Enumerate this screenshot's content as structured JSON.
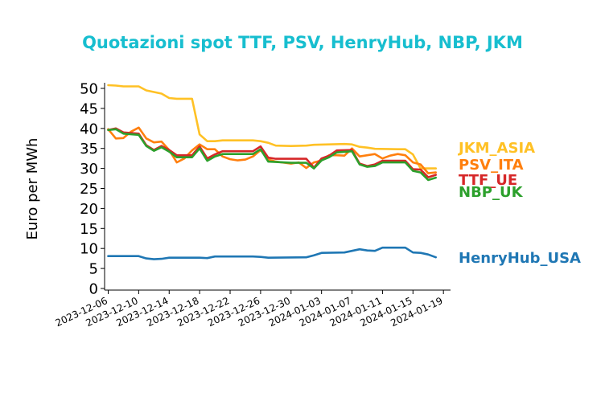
{
  "chart_data": {
    "type": "line",
    "title": "Quotazioni spot TTF, PSV, HenryHub, NBP, JKM",
    "title_color": "#17becf",
    "ylabel": "Euro per MWh",
    "xlabel": "",
    "ylim": [
      0,
      51
    ],
    "yticks": [
      0,
      5,
      10,
      15,
      20,
      25,
      30,
      35,
      40,
      45,
      50
    ],
    "xlim": [
      "2023-12-06",
      "2024-01-19"
    ],
    "xticks": [
      "2023-12-06",
      "2023-12-10",
      "2023-12-14",
      "2023-12-18",
      "2023-12-22",
      "2023-12-26",
      "2023-12-30",
      "2024-01-03",
      "2024-01-07",
      "2024-01-11",
      "2024-01-15",
      "2024-01-19"
    ],
    "grid": false,
    "legend": "labels at right end of lines",
    "series": [
      {
        "name": "JKM_ASIA",
        "color": "#ffc125",
        "points": [
          [
            "2023-12-06",
            50.8
          ],
          [
            "2023-12-07",
            50.7
          ],
          [
            "2023-12-08",
            50.5
          ],
          [
            "2023-12-10",
            50.5
          ],
          [
            "2023-12-11",
            49.5
          ],
          [
            "2023-12-12",
            49.1
          ],
          [
            "2023-12-13",
            48.7
          ],
          [
            "2023-12-14",
            47.6
          ],
          [
            "2023-12-15",
            47.4
          ],
          [
            "2023-12-16",
            47.4
          ],
          [
            "2023-12-17",
            47.4
          ],
          [
            "2023-12-18",
            38.5
          ],
          [
            "2023-12-19",
            36.8
          ],
          [
            "2023-12-20",
            36.8
          ],
          [
            "2023-12-21",
            37.0
          ],
          [
            "2023-12-25",
            37.0
          ],
          [
            "2023-12-26",
            36.8
          ],
          [
            "2023-12-27",
            36.4
          ],
          [
            "2023-12-28",
            35.7
          ],
          [
            "2023-12-30",
            35.6
          ],
          [
            "2024-01-01",
            35.7
          ],
          [
            "2024-01-02",
            35.9
          ],
          [
            "2024-01-04",
            36.0
          ],
          [
            "2024-01-06",
            36.1
          ],
          [
            "2024-01-07",
            36.0
          ],
          [
            "2024-01-08",
            35.4
          ],
          [
            "2024-01-09",
            35.2
          ],
          [
            "2024-01-10",
            34.9
          ],
          [
            "2024-01-13",
            34.8
          ],
          [
            "2024-01-14",
            34.8
          ],
          [
            "2024-01-15",
            33.5
          ],
          [
            "2024-01-16",
            30.0
          ],
          [
            "2024-01-17",
            30.0
          ],
          [
            "2024-01-18",
            30.0
          ]
        ]
      },
      {
        "name": "PSV_ITA",
        "color": "#ff7f0e",
        "points": [
          [
            "2023-12-06",
            39.8
          ],
          [
            "2023-12-07",
            37.5
          ],
          [
            "2023-12-08",
            37.6
          ],
          [
            "2023-12-09",
            39.2
          ],
          [
            "2023-12-10",
            40.2
          ],
          [
            "2023-12-11",
            37.5
          ],
          [
            "2023-12-12",
            36.5
          ],
          [
            "2023-12-13",
            36.7
          ],
          [
            "2023-12-14",
            34.6
          ],
          [
            "2023-12-15",
            31.5
          ],
          [
            "2023-12-16",
            32.5
          ],
          [
            "2023-12-17",
            34.5
          ],
          [
            "2023-12-18",
            36.0
          ],
          [
            "2023-12-19",
            34.8
          ],
          [
            "2023-12-20",
            34.8
          ],
          [
            "2023-12-21",
            33.0
          ],
          [
            "2023-12-22",
            32.3
          ],
          [
            "2023-12-23",
            32.0
          ],
          [
            "2023-12-24",
            32.2
          ],
          [
            "2023-12-25",
            33.0
          ],
          [
            "2023-12-26",
            34.6
          ],
          [
            "2023-12-27",
            32.2
          ],
          [
            "2023-12-28",
            31.7
          ],
          [
            "2023-12-30",
            31.2
          ],
          [
            "2023-12-31",
            31.5
          ],
          [
            "2024-01-01",
            30.1
          ],
          [
            "2024-01-02",
            31.5
          ],
          [
            "2024-01-03",
            32.0
          ],
          [
            "2024-01-04",
            33.3
          ],
          [
            "2024-01-05",
            33.3
          ],
          [
            "2024-01-06",
            33.2
          ],
          [
            "2024-01-07",
            35.0
          ],
          [
            "2024-01-08",
            33.0
          ],
          [
            "2024-01-09",
            33.3
          ],
          [
            "2024-01-10",
            33.6
          ],
          [
            "2024-01-11",
            32.5
          ],
          [
            "2024-01-12",
            33.2
          ],
          [
            "2024-01-13",
            33.6
          ],
          [
            "2024-01-14",
            33.3
          ],
          [
            "2024-01-15",
            31.5
          ],
          [
            "2024-01-16",
            31.0
          ],
          [
            "2024-01-17",
            28.8
          ],
          [
            "2024-01-18",
            29.0
          ]
        ]
      },
      {
        "name": "TTF_UE",
        "color": "#d62728",
        "points": [
          [
            "2023-12-06",
            39.6
          ],
          [
            "2023-12-07",
            40.0
          ],
          [
            "2023-12-08",
            39.0
          ],
          [
            "2023-12-10",
            38.7
          ],
          [
            "2023-12-11",
            35.8
          ],
          [
            "2023-12-12",
            34.6
          ],
          [
            "2023-12-13",
            35.6
          ],
          [
            "2023-12-14",
            34.6
          ],
          [
            "2023-12-15",
            33.3
          ],
          [
            "2023-12-17",
            33.3
          ],
          [
            "2023-12-18",
            35.5
          ],
          [
            "2023-12-19",
            32.5
          ],
          [
            "2023-12-20",
            33.5
          ],
          [
            "2023-12-21",
            34.3
          ],
          [
            "2023-12-25",
            34.3
          ],
          [
            "2023-12-26",
            35.5
          ],
          [
            "2023-12-27",
            32.7
          ],
          [
            "2023-12-28",
            32.4
          ],
          [
            "2024-01-01",
            32.4
          ],
          [
            "2024-01-02",
            30.2
          ],
          [
            "2024-01-03",
            32.5
          ],
          [
            "2024-01-04",
            33.2
          ],
          [
            "2024-01-05",
            34.5
          ],
          [
            "2024-01-07",
            34.6
          ],
          [
            "2024-01-08",
            31.2
          ],
          [
            "2024-01-09",
            30.6
          ],
          [
            "2024-01-10",
            31.0
          ],
          [
            "2024-01-11",
            31.9
          ],
          [
            "2024-01-13",
            31.9
          ],
          [
            "2024-01-14",
            31.9
          ],
          [
            "2024-01-15",
            29.8
          ],
          [
            "2024-01-16",
            29.7
          ],
          [
            "2024-01-17",
            27.8
          ],
          [
            "2024-01-18",
            28.4
          ]
        ]
      },
      {
        "name": "NBP_UK",
        "color": "#2ca02c",
        "points": [
          [
            "2023-12-06",
            39.6
          ],
          [
            "2023-12-07",
            39.8
          ],
          [
            "2023-12-08",
            38.7
          ],
          [
            "2023-12-10",
            38.4
          ],
          [
            "2023-12-11",
            35.6
          ],
          [
            "2023-12-12",
            34.4
          ],
          [
            "2023-12-13",
            35.3
          ],
          [
            "2023-12-14",
            34.2
          ],
          [
            "2023-12-15",
            32.8
          ],
          [
            "2023-12-17",
            32.8
          ],
          [
            "2023-12-18",
            35.0
          ],
          [
            "2023-12-19",
            31.9
          ],
          [
            "2023-12-20",
            33.0
          ],
          [
            "2023-12-21",
            33.6
          ],
          [
            "2023-12-25",
            33.6
          ],
          [
            "2023-12-26",
            34.8
          ],
          [
            "2023-12-27",
            31.7
          ],
          [
            "2023-12-28",
            31.6
          ],
          [
            "2023-12-30",
            31.4
          ],
          [
            "2024-01-01",
            31.4
          ],
          [
            "2024-01-02",
            30.0
          ],
          [
            "2024-01-03",
            32.0
          ],
          [
            "2024-01-04",
            32.8
          ],
          [
            "2024-01-05",
            34.0
          ],
          [
            "2024-01-07",
            34.3
          ],
          [
            "2024-01-08",
            31.0
          ],
          [
            "2024-01-09",
            30.4
          ],
          [
            "2024-01-10",
            30.6
          ],
          [
            "2024-01-11",
            31.5
          ],
          [
            "2024-01-14",
            31.5
          ],
          [
            "2024-01-15",
            29.4
          ],
          [
            "2024-01-16",
            29.0
          ],
          [
            "2024-01-17",
            27.1
          ],
          [
            "2024-01-18",
            27.7
          ]
        ]
      },
      {
        "name": "HenryHub_USA",
        "color": "#1f77b4",
        "points": [
          [
            "2023-12-06",
            8.1
          ],
          [
            "2023-12-10",
            8.1
          ],
          [
            "2023-12-11",
            7.5
          ],
          [
            "2023-12-12",
            7.3
          ],
          [
            "2023-12-13",
            7.4
          ],
          [
            "2023-12-14",
            7.7
          ],
          [
            "2023-12-18",
            7.7
          ],
          [
            "2023-12-19",
            7.6
          ],
          [
            "2023-12-20",
            8.0
          ],
          [
            "2023-12-25",
            8.0
          ],
          [
            "2023-12-26",
            7.9
          ],
          [
            "2023-12-27",
            7.7
          ],
          [
            "2024-01-01",
            7.8
          ],
          [
            "2024-01-02",
            8.3
          ],
          [
            "2024-01-03",
            8.9
          ],
          [
            "2024-01-06",
            9.0
          ],
          [
            "2024-01-07",
            9.4
          ],
          [
            "2024-01-08",
            9.8
          ],
          [
            "2024-01-09",
            9.5
          ],
          [
            "2024-01-10",
            9.4
          ],
          [
            "2024-01-11",
            10.2
          ],
          [
            "2024-01-14",
            10.2
          ],
          [
            "2024-01-15",
            9.0
          ],
          [
            "2024-01-16",
            8.9
          ],
          [
            "2024-01-17",
            8.5
          ],
          [
            "2024-01-18",
            7.8
          ]
        ]
      }
    ]
  }
}
